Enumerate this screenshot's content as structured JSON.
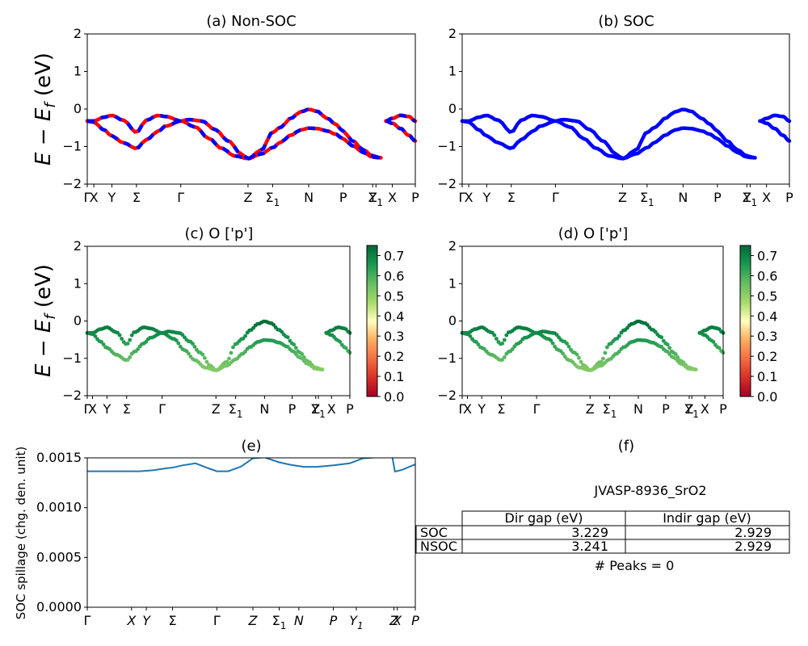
{
  "chart_data": [
    {
      "id": "a",
      "type": "line",
      "title": "(a) Non-SOC",
      "ylabel": "E − E_f (eV)",
      "ylim": [
        -2,
        2
      ],
      "yticks": [
        "2",
        "1",
        "0",
        "−1",
        "−2"
      ],
      "xlim": [
        0,
        100
      ],
      "kpoint_labels": [
        "Γ",
        "X",
        "Y",
        "Σ",
        "Γ",
        "Z",
        "Σ₁",
        "N",
        "P",
        "Z",
        "Y₁",
        "X",
        "P"
      ],
      "kpoint_positions": [
        0,
        2,
        7.5,
        15,
        28.5,
        49,
        56.5,
        67.5,
        78,
        87,
        88,
        93,
        100
      ],
      "path_break": [
        89.5,
        91
      ],
      "series": [
        {
          "color": "#ff0000",
          "style": "solid",
          "x": [
            0,
            2,
            5,
            7.5,
            11,
            15,
            18,
            21.5,
            24,
            28.5,
            33,
            37,
            41,
            45,
            49,
            53,
            56.5,
            59,
            62,
            65,
            67.5,
            70,
            73,
            76,
            78,
            81,
            84,
            87,
            89.5
          ],
          "y": [
            -0.32,
            -0.32,
            -0.22,
            -0.17,
            -0.3,
            -0.62,
            -0.3,
            -0.17,
            -0.2,
            -0.32,
            -0.48,
            -0.78,
            -1.05,
            -1.25,
            -1.32,
            -1.1,
            -0.62,
            -0.48,
            -0.25,
            -0.08,
            -0.01,
            -0.06,
            -0.24,
            -0.42,
            -0.6,
            -0.85,
            -1.08,
            -1.25,
            -1.3
          ]
        },
        {
          "color": "#ff0000",
          "style": "solid",
          "x": [
            0,
            2,
            5,
            7.5,
            11,
            15,
            18,
            21.5,
            24,
            28.5,
            31,
            35,
            39,
            43,
            47,
            49,
            53,
            56.5,
            59,
            62,
            65,
            67.5,
            70,
            73,
            76,
            78,
            81,
            84,
            87,
            89.5
          ],
          "y": [
            -0.32,
            -0.35,
            -0.55,
            -0.72,
            -0.9,
            -1.05,
            -0.82,
            -0.6,
            -0.45,
            -0.32,
            -0.28,
            -0.32,
            -0.55,
            -0.85,
            -1.2,
            -1.32,
            -1.2,
            -1.03,
            -0.88,
            -0.7,
            -0.56,
            -0.51,
            -0.52,
            -0.58,
            -0.68,
            -0.8,
            -0.98,
            -1.15,
            -1.28,
            -1.3
          ]
        },
        {
          "color": "#ff0000",
          "style": "solid",
          "x": [
            91,
            93,
            95.5,
            98,
            100
          ],
          "y": [
            -0.32,
            -0.25,
            -0.17,
            -0.2,
            -0.32
          ]
        },
        {
          "color": "#ff0000",
          "style": "solid",
          "x": [
            91,
            93,
            95.5,
            98,
            100
          ],
          "y": [
            -0.32,
            -0.38,
            -0.52,
            -0.7,
            -0.85
          ]
        },
        {
          "color": "#0000ff",
          "style": "dashed",
          "ref": 0
        },
        {
          "color": "#0000ff",
          "style": "dashed",
          "ref": 1
        },
        {
          "color": "#0000ff",
          "style": "dashed",
          "ref": 2
        },
        {
          "color": "#0000ff",
          "style": "dashed",
          "ref": 3
        }
      ]
    },
    {
      "id": "b",
      "type": "line",
      "title": "(b) SOC",
      "ylim": [
        -2,
        2
      ],
      "yticks": [
        "2",
        "1",
        "0",
        "−1",
        "−2"
      ],
      "xlim": [
        0,
        100
      ],
      "kpoint_labels": [
        "Γ",
        "X",
        "Y",
        "Σ",
        "Γ",
        "Z",
        "Σ₁",
        "N",
        "P",
        "Z",
        "Y₁",
        "X",
        "P"
      ],
      "kpoint_positions": [
        0,
        2,
        7.5,
        15,
        28.5,
        49,
        56.5,
        67.5,
        78,
        87,
        88,
        93,
        100
      ],
      "series": [
        {
          "color": "#0000ff",
          "style": "solid",
          "ref": 0
        },
        {
          "color": "#0000ff",
          "style": "solid",
          "ref": 1
        },
        {
          "color": "#0000ff",
          "style": "solid",
          "ref": 2
        },
        {
          "color": "#0000ff",
          "style": "solid",
          "ref": 3
        }
      ]
    },
    {
      "id": "c",
      "type": "scatter",
      "title": "(c)  O ['p']",
      "ylabel": "E − E_f (eV)",
      "ylim": [
        -2,
        2
      ],
      "yticks": [
        "2",
        "1",
        "0",
        "−1",
        "−2"
      ],
      "xlim": [
        0,
        100
      ],
      "kpoint_labels": [
        "Γ",
        "X",
        "Y",
        "Σ",
        "Γ",
        "Z",
        "Σ₁",
        "N",
        "P",
        "Z",
        "Y₁",
        "X",
        "P"
      ],
      "kpoint_positions": [
        0,
        2,
        7.5,
        15,
        28.5,
        49,
        56.5,
        67.5,
        78,
        87,
        88,
        93,
        100
      ],
      "colorbar": {
        "min": 0.0,
        "max": 0.75,
        "ticks": [
          "0.7",
          "0.6",
          "0.5",
          "0.4",
          "0.3",
          "0.2",
          "0.1",
          "0.0"
        ],
        "tick_values": [
          0.7,
          0.6,
          0.5,
          0.4,
          0.3,
          0.2,
          0.1,
          0.0
        ],
        "colormap": "RdYlGn"
      },
      "series_refs": [
        0,
        1,
        2,
        3
      ]
    },
    {
      "id": "d",
      "type": "scatter",
      "title": "(d) O ['p']",
      "ylim": [
        -2,
        2
      ],
      "yticks": [
        "2",
        "1",
        "0",
        "−1",
        "−2"
      ],
      "xlim": [
        0,
        100
      ],
      "kpoint_labels": [
        "Γ",
        "X",
        "Y",
        "Σ",
        "Γ",
        "Z",
        "Σ₁",
        "N",
        "P",
        "Z",
        "Y₁",
        "X",
        "P"
      ],
      "kpoint_positions": [
        0,
        2,
        7.5,
        15,
        28.5,
        49,
        56.5,
        67.5,
        78,
        87,
        88,
        93,
        100
      ],
      "colorbar": {
        "min": 0.0,
        "max": 0.75,
        "ticks": [
          "0.7",
          "0.6",
          "0.5",
          "0.4",
          "0.3",
          "0.2",
          "0.1",
          "0.0"
        ],
        "tick_values": [
          0.7,
          0.6,
          0.5,
          0.4,
          0.3,
          0.2,
          0.1,
          0.0
        ],
        "colormap": "RdYlGn"
      },
      "series_refs": [
        0,
        1,
        2,
        3
      ]
    },
    {
      "id": "e",
      "type": "line",
      "title": "(e)",
      "ylabel": "SOC spillage (chg. den. unit)",
      "ylim": [
        0,
        0.0015
      ],
      "yticks": [
        "0.0015",
        "0.0010",
        "0.0005",
        "0.0000"
      ],
      "ytick_values": [
        0.0015,
        0.001,
        0.0005,
        0
      ],
      "xlim": [
        0,
        100
      ],
      "kpoint_labels": [
        "Γ",
        "X",
        "Y",
        "Σ",
        "Γ",
        "Z",
        "Σ₁",
        "N",
        "P",
        "Y₁",
        "Z",
        "X",
        "P"
      ],
      "kpoint_positions": [
        0,
        13.5,
        18,
        26,
        39.5,
        50.5,
        58.5,
        64.5,
        75,
        82,
        93.5,
        94.5,
        100
      ],
      "series": [
        {
          "color": "#1f77b4",
          "x": [
            0,
            5,
            10,
            16,
            20,
            24,
            26.5,
            29,
            33,
            37,
            39.5,
            43,
            47,
            50.5,
            54,
            58.5,
            62,
            66,
            70,
            75,
            80,
            84,
            88,
            93,
            93.8,
            96,
            100
          ],
          "y": [
            0.001365,
            0.001365,
            0.001365,
            0.001365,
            0.001375,
            0.001395,
            0.001405,
            0.001425,
            0.001445,
            0.001395,
            0.001365,
            0.001365,
            0.001415,
            0.001495,
            0.001505,
            0.001455,
            0.00143,
            0.00141,
            0.00141,
            0.001425,
            0.001445,
            0.001495,
            0.001505,
            0.001505,
            0.001362,
            0.00138,
            0.001435
          ]
        }
      ]
    }
  ],
  "table": {
    "title": "(f)",
    "material": "JVASP-8936_SrO2",
    "headers": [
      "",
      "Dir gap (eV)",
      "Indir gap (eV)"
    ],
    "rows": [
      [
        "SOC",
        "3.229",
        "2.929"
      ],
      [
        "NSOC",
        "3.241",
        "2.929"
      ]
    ],
    "peaks": "# Peaks = 0"
  }
}
